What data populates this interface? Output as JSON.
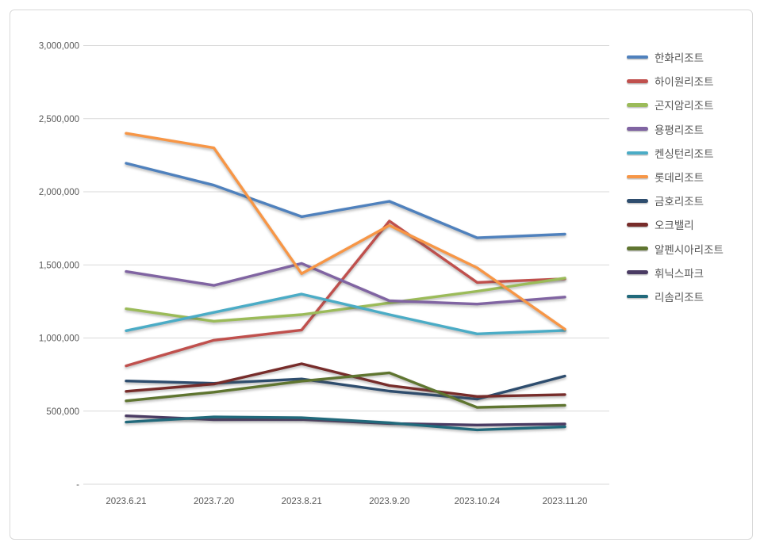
{
  "chart_data": {
    "type": "line",
    "title": "",
    "xlabel": "",
    "ylabel": "",
    "grid": true,
    "legend_position": "right",
    "categories": [
      "2023.6.21",
      "2023.7.20",
      "2023.8.21",
      "2023.9.20",
      "2023.10.24",
      "2023.11.20"
    ],
    "y_axis": {
      "min": 0,
      "max": 3000000,
      "tick_interval": 500000,
      "tick_labels_bottom_to_top": [
        "-",
        "500,000",
        "1,000,000",
        "1,500,000",
        "2,000,000",
        "2,500,000",
        "3,000,000"
      ]
    },
    "series": [
      {
        "name": "한화리조트",
        "color": "#4F81BD",
        "values": [
          2195000,
          2045000,
          1830000,
          1935000,
          1685000,
          1710000
        ]
      },
      {
        "name": "하이원리조트",
        "color": "#C0504D",
        "values": [
          810000,
          985000,
          1055000,
          1800000,
          1380000,
          1405000
        ]
      },
      {
        "name": "곤지암리조트",
        "color": "#9BBB59",
        "values": [
          1200000,
          1115000,
          1160000,
          1240000,
          1320000,
          1410000
        ]
      },
      {
        "name": "용평리조트",
        "color": "#8064A2",
        "values": [
          1455000,
          1360000,
          1510000,
          1255000,
          1232000,
          1280000
        ]
      },
      {
        "name": "켄싱턴리조트",
        "color": "#4BACC6",
        "values": [
          1050000,
          1175000,
          1300000,
          1160000,
          1028000,
          1052000
        ]
      },
      {
        "name": "롯데리조트",
        "color": "#F79646",
        "values": [
          2400000,
          2300000,
          1440000,
          1770000,
          1480000,
          1060000
        ]
      },
      {
        "name": "금호리조트",
        "color": "#2E4D6E",
        "values": [
          706000,
          690000,
          720000,
          637000,
          582000,
          740000
        ]
      },
      {
        "name": "오크밸리",
        "color": "#772C2A",
        "values": [
          635000,
          685000,
          824000,
          675000,
          600000,
          613000
        ]
      },
      {
        "name": "알펜시아리조트",
        "color": "#5F7530",
        "values": [
          570000,
          630000,
          705000,
          762000,
          525000,
          540000
        ]
      },
      {
        "name": "휘닉스파크",
        "color": "#4A3B63",
        "values": [
          468000,
          442000,
          443000,
          415000,
          405000,
          412000
        ]
      },
      {
        "name": "리솜리조트",
        "color": "#21697B",
        "values": [
          425000,
          460000,
          455000,
          420000,
          372000,
          393000
        ]
      }
    ]
  },
  "colors": {
    "background": "#FFFFFF",
    "frame_border": "#D9D9D9",
    "gridline": "#D9D9D9",
    "axis_text": "#595959",
    "legend_text": "#555555"
  },
  "layout_hints": {
    "zero_tick_rendered_as": "-",
    "number_format": "thousands-comma"
  }
}
